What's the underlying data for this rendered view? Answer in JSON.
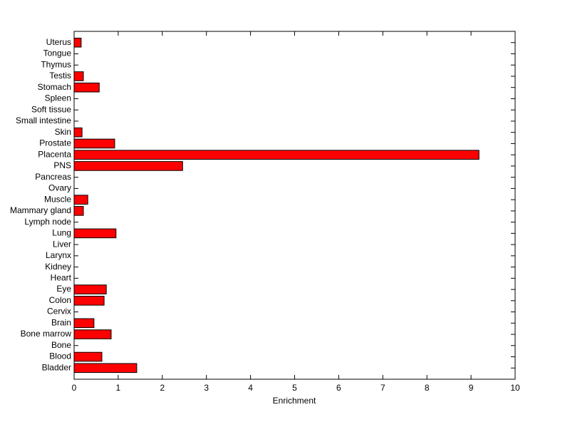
{
  "chart_data": {
    "type": "barh",
    "xlabel": "Enrichment",
    "categories": [
      "Bladder",
      "Blood",
      "Bone",
      "Bone marrow",
      "Brain",
      "Cervix",
      "Colon",
      "Eye",
      "Heart",
      "Kidney",
      "Larynx",
      "Liver",
      "Lung",
      "Lymph node",
      "Mammary gland",
      "Muscle",
      "Ovary",
      "Pancreas",
      "PNS",
      "Placenta",
      "Prostate",
      "Skin",
      "Small intestine",
      "Soft tissue",
      "Spleen",
      "Stomach",
      "Testis",
      "Thymus",
      "Tongue",
      "Uterus"
    ],
    "values": [
      1.42,
      0.63,
      0,
      0.84,
      0.45,
      0,
      0.68,
      0.73,
      0,
      0,
      0,
      0,
      0.95,
      0,
      0.21,
      0.31,
      0,
      0,
      2.46,
      9.18,
      0.92,
      0.18,
      0,
      0,
      0,
      0.57,
      0.21,
      0,
      0,
      0.16
    ],
    "color": "#ff0000",
    "xlim": [
      0,
      10
    ],
    "xticks": [
      0,
      1,
      2,
      3,
      4,
      5,
      6,
      7,
      8,
      9,
      10
    ]
  }
}
